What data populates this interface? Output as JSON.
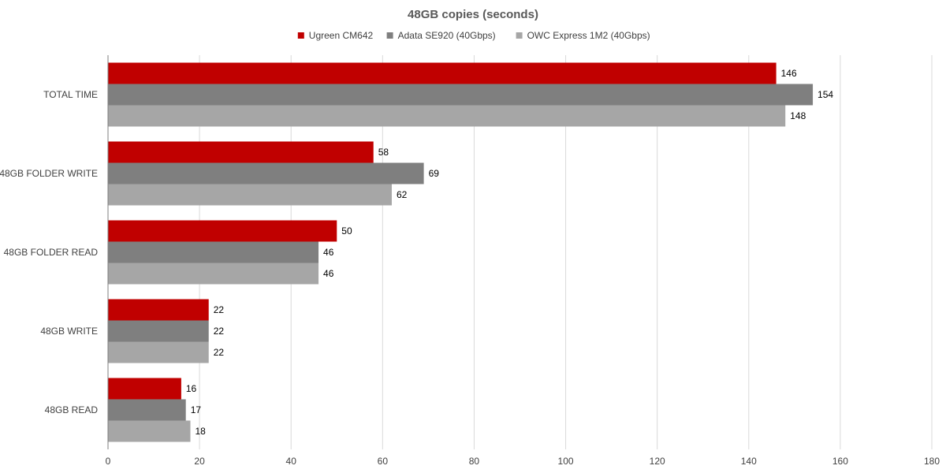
{
  "chart_data": {
    "type": "bar",
    "orientation": "horizontal",
    "title": "48GB copies (seconds)",
    "categories": [
      "TOTAL TIME",
      "48GB FOLDER WRITE",
      "48GB FOLDER READ",
      "48GB WRITE",
      "48GB READ"
    ],
    "series": [
      {
        "name": "Ugreen CM642",
        "color": "#c00000",
        "values": [
          146,
          58,
          50,
          22,
          16
        ]
      },
      {
        "name": "Adata SE920 (40Gbps)",
        "color": "#7f7f7f",
        "values": [
          154,
          69,
          46,
          22,
          17
        ]
      },
      {
        "name": "OWC Express 1M2 (40Gbps)",
        "color": "#a6a6a6",
        "values": [
          148,
          62,
          46,
          22,
          18
        ]
      }
    ],
    "xlim": [
      0,
      180
    ],
    "xticks": [
      0,
      20,
      40,
      60,
      80,
      100,
      120,
      140,
      160,
      180
    ],
    "grid": true,
    "legend_position": "top-center"
  }
}
